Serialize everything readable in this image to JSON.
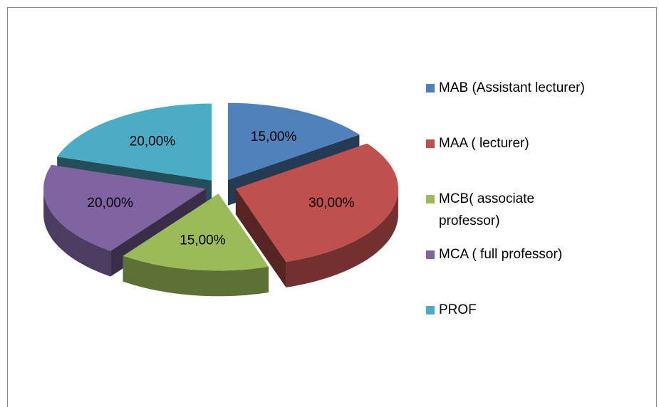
{
  "chart_data": {
    "type": "pie3d",
    "categories": [
      "MAB (Assistant lecturer)",
      "MAA ( lecturer)",
      "MCB( associate professor)",
      "MCA ( full professor)",
      "PROF"
    ],
    "values": [
      15,
      30,
      15,
      20,
      20
    ],
    "value_labels": [
      "15,00%",
      "30,00%",
      "15,00%",
      "20,00%",
      "20,00%"
    ],
    "colors": [
      "#4f81bd",
      "#c0504d",
      "#9bbb59",
      "#8064a2",
      "#4bacc6"
    ],
    "legend": "right"
  }
}
